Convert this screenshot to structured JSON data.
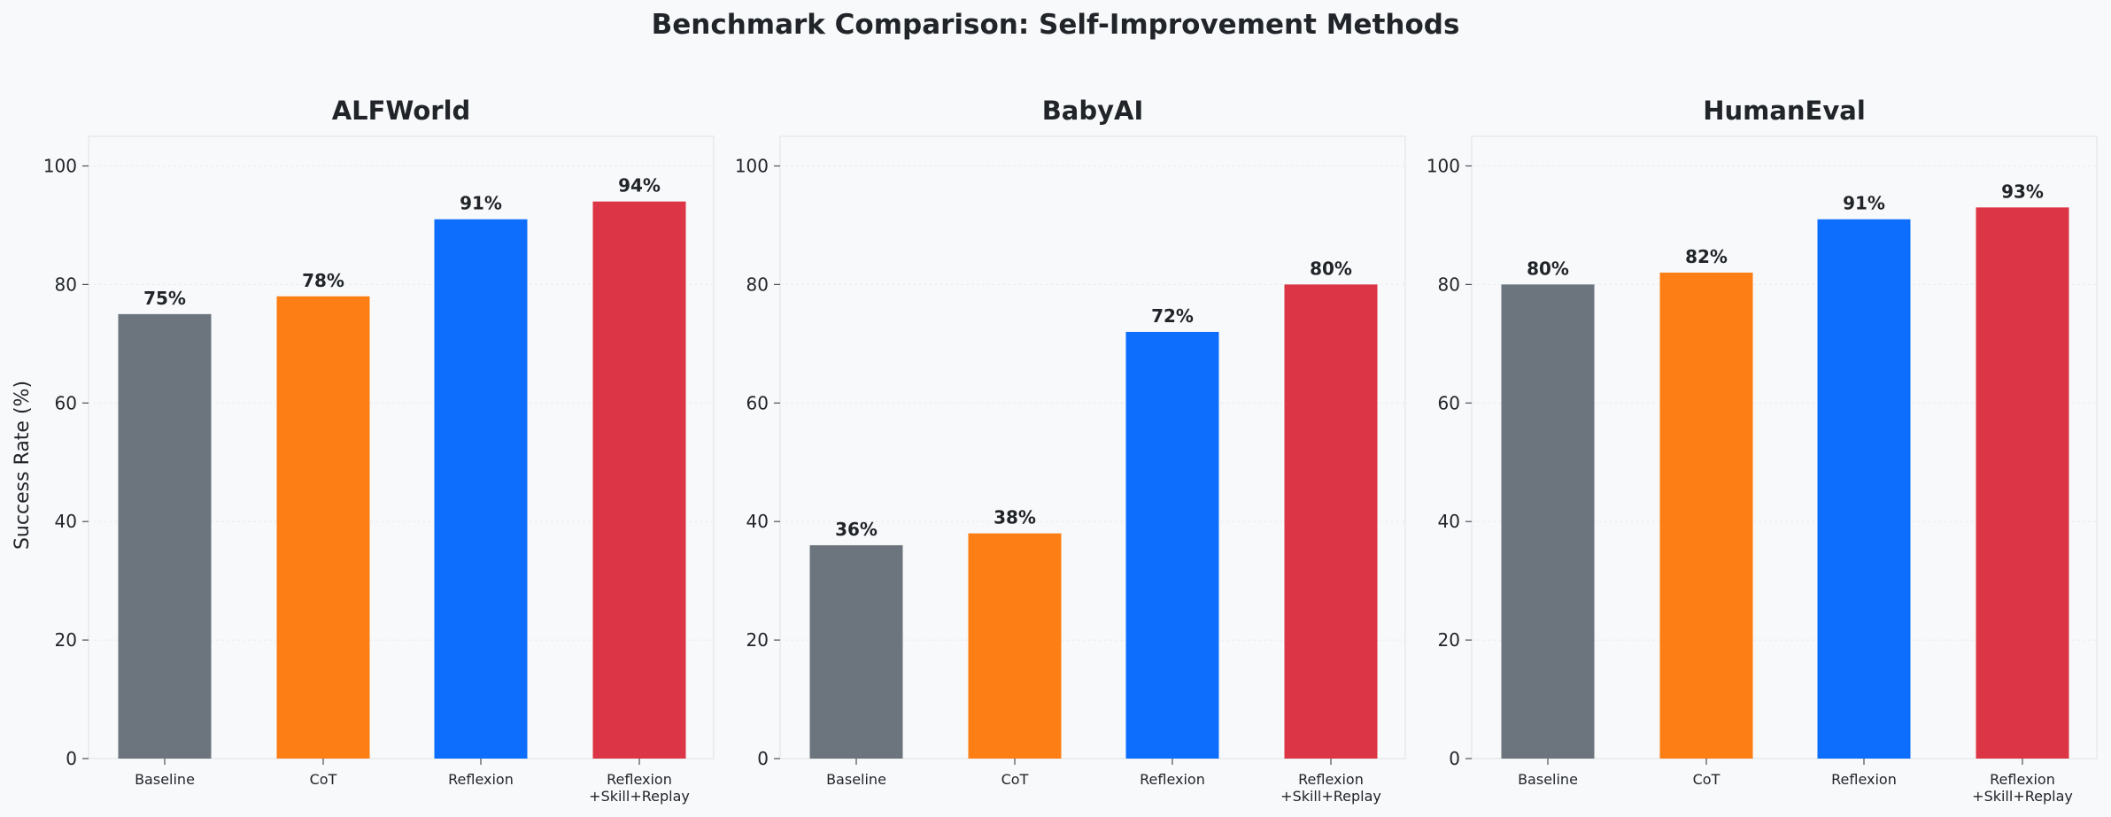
{
  "figure": {
    "title": "Benchmark Comparison: Self-Improvement Methods"
  },
  "colors": {
    "background": "#f8f9fb",
    "Baseline": "#6c757d",
    "CoT": "#fd7e14",
    "Reflexion": "#0d6efd",
    "Reflexion+Skill+Replay": "#dc3545"
  },
  "chart_data": [
    {
      "type": "bar",
      "title": "ALFWorld",
      "ylabel": "Success Rate (%)",
      "xlabel": "",
      "categories": [
        "Baseline",
        "CoT",
        "Reflexion",
        "Reflexion\n+Skill+Replay"
      ],
      "values": [
        75,
        78,
        91,
        94
      ],
      "data_labels": [
        "75%",
        "78%",
        "91%",
        "94%"
      ],
      "ylim": [
        0,
        105
      ],
      "yticks": [
        0,
        20,
        40,
        60,
        80,
        100
      ],
      "grid": true
    },
    {
      "type": "bar",
      "title": "BabyAI",
      "ylabel": "",
      "xlabel": "",
      "categories": [
        "Baseline",
        "CoT",
        "Reflexion",
        "Reflexion\n+Skill+Replay"
      ],
      "values": [
        36,
        38,
        72,
        80
      ],
      "data_labels": [
        "36%",
        "38%",
        "72%",
        "80%"
      ],
      "ylim": [
        0,
        105
      ],
      "yticks": [
        0,
        20,
        40,
        60,
        80,
        100
      ],
      "grid": true
    },
    {
      "type": "bar",
      "title": "HumanEval",
      "ylabel": "",
      "xlabel": "",
      "categories": [
        "Baseline",
        "CoT",
        "Reflexion",
        "Reflexion\n+Skill+Replay"
      ],
      "values": [
        80,
        82,
        91,
        93
      ],
      "data_labels": [
        "80%",
        "82%",
        "91%",
        "93%"
      ],
      "ylim": [
        0,
        105
      ],
      "yticks": [
        0,
        20,
        40,
        60,
        80,
        100
      ],
      "grid": true
    }
  ]
}
